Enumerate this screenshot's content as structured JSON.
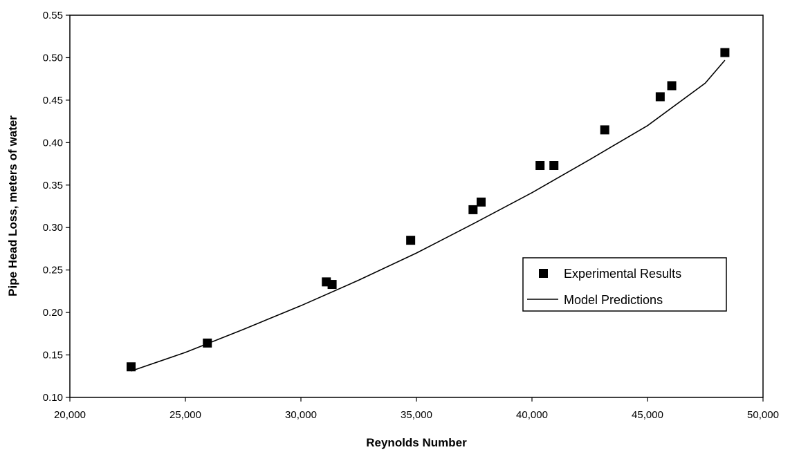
{
  "chart_data": {
    "type": "scatter",
    "title": "",
    "xlabel": "Reynolds Number",
    "ylabel": "Pipe Head Loss, meters of water",
    "xlim": [
      20000,
      50000
    ],
    "ylim": [
      0.1,
      0.55
    ],
    "x_ticks": [
      20000,
      25000,
      30000,
      35000,
      40000,
      45000,
      50000
    ],
    "x_tick_labels": [
      "20,000",
      "25,000",
      "30,000",
      "35,000",
      "40,000",
      "45,000",
      "50,000"
    ],
    "y_ticks": [
      0.1,
      0.15,
      0.2,
      0.25,
      0.3,
      0.35,
      0.4,
      0.45,
      0.5,
      0.55
    ],
    "y_tick_labels": [
      "0.10",
      "0.15",
      "0.20",
      "0.25",
      "0.30",
      "0.35",
      "0.40",
      "0.45",
      "0.50",
      "0.55"
    ],
    "grid": false,
    "legend_position": "center-right",
    "series": [
      {
        "name": "Experimental Results",
        "kind": "markers",
        "marker": "square",
        "color": "#000000",
        "x": [
          22650,
          25950,
          31100,
          31350,
          34750,
          37450,
          37800,
          40350,
          40950,
          43150,
          45550,
          46050,
          48350
        ],
        "y": [
          0.136,
          0.164,
          0.236,
          0.233,
          0.285,
          0.321,
          0.33,
          0.373,
          0.373,
          0.415,
          0.454,
          0.467,
          0.506
        ]
      },
      {
        "name": "Model Predictions",
        "kind": "line",
        "color": "#000000",
        "x": [
          22650,
          25000,
          27500,
          30000,
          32500,
          35000,
          37500,
          40000,
          42500,
          45000,
          47500,
          48350
        ],
        "y": [
          0.131,
          0.153,
          0.18,
          0.208,
          0.238,
          0.27,
          0.305,
          0.341,
          0.38,
          0.42,
          0.47,
          0.497
        ]
      }
    ]
  }
}
